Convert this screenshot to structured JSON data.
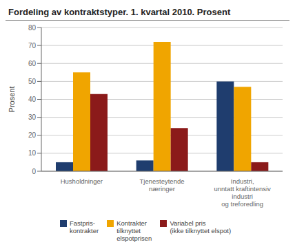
{
  "chart_data": {
    "type": "bar",
    "title": "Fordeling av kontraktstyper. 1. kvartal 2010. Prosent",
    "ylabel": "Prosent",
    "categories": [
      "Husholdninger",
      "Tjenesteytende\nnæringer",
      "Industri,\nunntatt kraftintensiv\nindustri\nog treforedling"
    ],
    "series": [
      {
        "name": "Fastpris-\nkontrakter",
        "color": "#1f3d6e",
        "values": [
          5,
          6,
          50
        ]
      },
      {
        "name": "Kontrakter\ntilknyttet\nelspotprisen",
        "color": "#f0a500",
        "values": [
          55,
          72,
          47
        ]
      },
      {
        "name": "Variabel pris\n(ikke tilknyttet elspot)",
        "color": "#8b1a1a",
        "values": [
          43,
          24,
          5
        ]
      }
    ],
    "ylim": [
      0,
      80
    ],
    "yticks": [
      0,
      10,
      20,
      30,
      40,
      50,
      60,
      70,
      80
    ],
    "grid": true,
    "legend": "bottom"
  }
}
